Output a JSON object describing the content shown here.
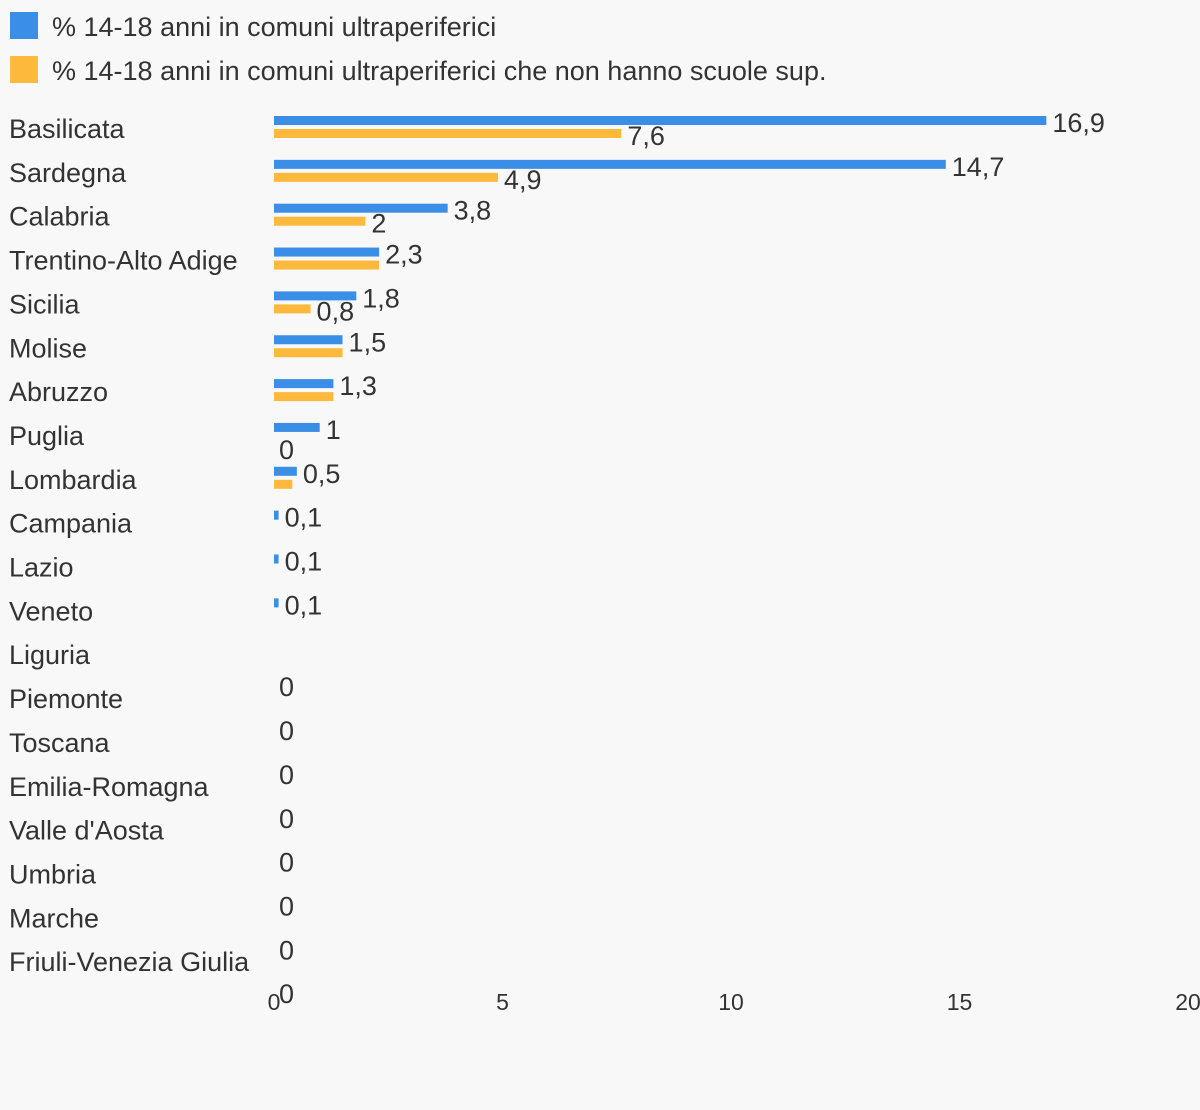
{
  "chart_data": {
    "type": "bar",
    "orientation": "horizontal",
    "categories": [
      "Basilicata",
      "Sardegna",
      "Calabria",
      "Trentino-Alto Adige",
      "Sicilia",
      "Molise",
      "Abruzzo",
      "Puglia",
      "Lombardia",
      "Campania",
      "Lazio",
      "Veneto",
      "Liguria",
      "Piemonte",
      "Toscana",
      "Emilia-Romagna",
      "Valle d'Aosta",
      "Umbria",
      "Marche",
      "Friuli-Venezia Giulia"
    ],
    "series": [
      {
        "name": "% 14-18 anni in comuni ultraperiferici",
        "color": "#3a8ee6",
        "values": [
          16.9,
          14.7,
          3.8,
          2.3,
          1.8,
          1.5,
          1.3,
          1,
          0.5,
          0.1,
          0.1,
          0.1,
          0,
          0,
          0,
          0,
          0,
          0,
          0,
          0
        ],
        "labels": [
          "16,9",
          "14,7",
          "3,8",
          "2,3",
          "1,8",
          "1,5",
          "1,3",
          "1",
          "0,5",
          "0,1",
          "0,1",
          "0,1",
          "",
          "",
          "",
          "",
          "",
          "",
          "",
          ""
        ]
      },
      {
        "name": "% 14-18 anni in comuni ultraperiferici che non hanno scuole sup.",
        "color": "#fdb93b",
        "values": [
          7.6,
          4.9,
          2,
          2.3,
          0.8,
          1.5,
          1.3,
          0,
          0.4,
          0,
          0,
          0,
          0,
          0,
          0,
          0,
          0,
          0,
          0,
          0
        ],
        "labels": [
          "7,6",
          "4,9",
          "2",
          "",
          "0,8",
          "",
          "",
          "0",
          "",
          "",
          "",
          "",
          "0",
          "0",
          "0",
          "0",
          "0",
          "0",
          "0",
          "0"
        ]
      }
    ],
    "xlim": [
      0,
      20
    ],
    "xticks": [
      "0",
      "5",
      "10",
      "15",
      "20"
    ],
    "legend_position": "top-left",
    "grid": false
  }
}
